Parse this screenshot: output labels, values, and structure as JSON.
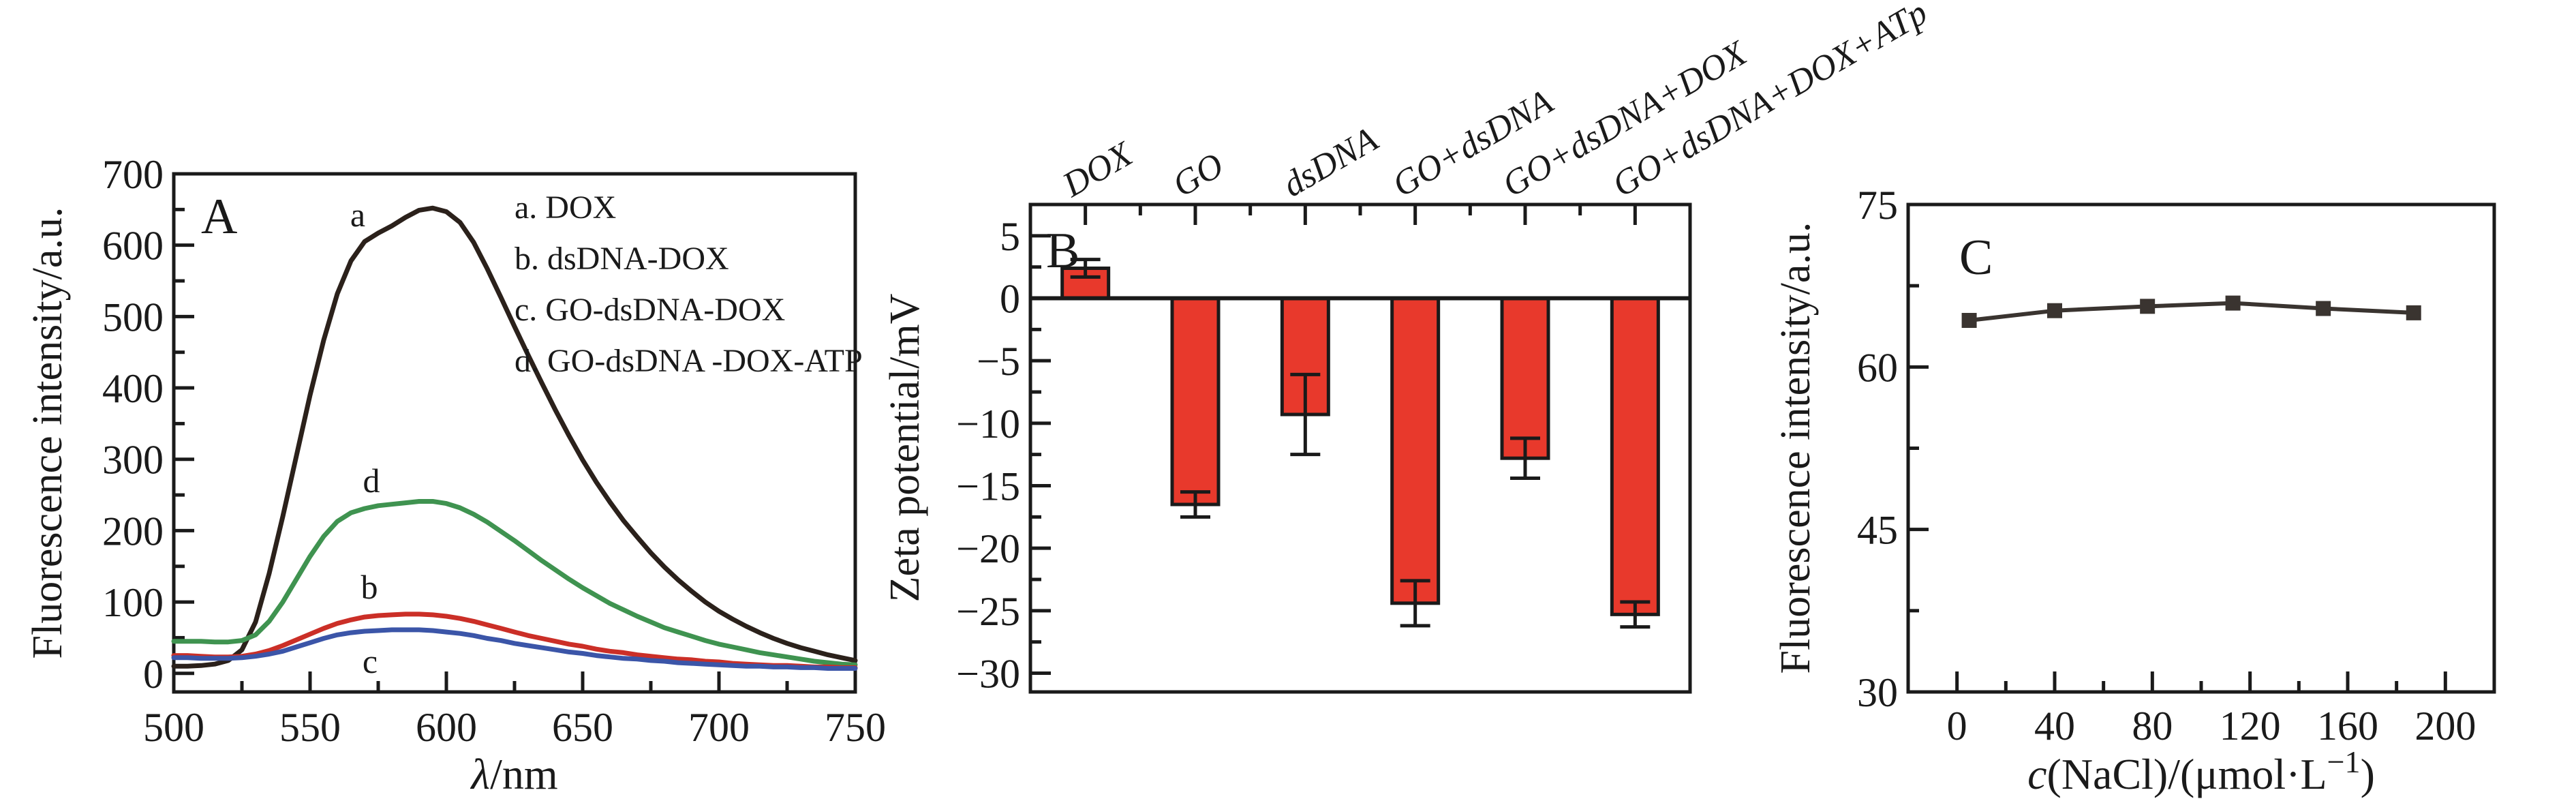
{
  "figure": {
    "description": "Three-panel scientific figure",
    "panel_letters": [
      "A",
      "B",
      "C"
    ],
    "colors": {
      "ink": "#1a1a1a",
      "background": "#ffffff"
    }
  },
  "chart_data": [
    {
      "id": "A",
      "type": "line",
      "panel_label": "A",
      "xlabel": "λ/nm",
      "xlabel_parts": {
        "italic": "λ",
        "rest": "/nm"
      },
      "ylabel": "Fluorescence intensity/a.u.",
      "xlim": [
        500,
        750
      ],
      "ylim": [
        -26,
        700
      ],
      "x_major_ticks": [
        500,
        550,
        600,
        650,
        700,
        750
      ],
      "x_minor_ticks": [
        525,
        575,
        625,
        675,
        725
      ],
      "y_major_ticks": [
        0,
        100,
        200,
        300,
        400,
        500,
        600,
        700
      ],
      "y_minor_ticks": [
        50,
        150,
        250,
        350,
        450,
        550,
        650
      ],
      "legend": [
        "a. DOX",
        "b. dsDNA-DOX",
        "c. GO-dsDNA-DOX",
        "d. GO-dsDNA -DOX-ATP"
      ],
      "x_start": 500,
      "x_step": 5,
      "series": [
        {
          "name": "a",
          "label": "a",
          "color": "#2b211b",
          "y": [
            10,
            10,
            11,
            13,
            18,
            33,
            72,
            140,
            220,
            305,
            390,
            467,
            532,
            578,
            605,
            617,
            627,
            639,
            649,
            652,
            647,
            632,
            604,
            567,
            527,
            486,
            446,
            407,
            369,
            333,
            299,
            268,
            240,
            214,
            191,
            169,
            149,
            131,
            115,
            100,
            87,
            76,
            66,
            57,
            49,
            42,
            36,
            31,
            26,
            22,
            18
          ]
        },
        {
          "name": "d",
          "label": "d",
          "color": "#3f9350",
          "y": [
            45,
            45,
            45,
            44,
            44,
            46,
            54,
            73,
            100,
            132,
            164,
            192,
            213,
            225,
            231,
            235,
            237,
            239,
            241,
            241,
            238,
            232,
            223,
            212,
            199,
            186,
            172,
            158,
            145,
            132,
            120,
            109,
            98,
            89,
            80,
            72,
            64,
            58,
            52,
            46,
            41,
            37,
            33,
            29,
            26,
            23,
            20,
            17,
            15,
            13,
            12
          ]
        },
        {
          "name": "b",
          "label": "b",
          "color": "#cb2f27",
          "y": [
            25,
            25,
            24,
            23,
            23,
            24,
            27,
            32,
            39,
            47,
            55,
            63,
            70,
            75,
            79,
            81,
            82,
            83,
            83,
            82,
            80,
            77,
            73,
            68,
            63,
            58,
            53,
            49,
            45,
            41,
            38,
            34,
            31,
            29,
            26,
            24,
            22,
            20,
            19,
            17,
            16,
            14,
            13,
            12,
            11,
            11,
            10,
            9,
            9,
            8,
            8
          ]
        },
        {
          "name": "c",
          "label": "c",
          "color": "#3b55a8",
          "y": [
            22,
            22,
            21,
            21,
            21,
            22,
            24,
            27,
            31,
            37,
            43,
            49,
            54,
            57,
            59,
            60,
            61,
            61,
            61,
            60,
            58,
            56,
            53,
            49,
            46,
            42,
            39,
            36,
            33,
            30,
            28,
            25,
            23,
            21,
            20,
            18,
            17,
            15,
            14,
            13,
            12,
            11,
            10,
            10,
            9,
            9,
            8,
            8,
            7,
            7,
            7
          ]
        }
      ]
    },
    {
      "id": "B",
      "type": "bar",
      "panel_label": "B",
      "ylabel": "Zeta potential/mV",
      "categories": [
        "DOX",
        "GO",
        "dsDNA",
        "GO+dsDNA",
        "GO+dsDNA+DOX",
        "GO+dsDNA+DOX+ATp"
      ],
      "values": [
        2.4,
        -16.5,
        -9.3,
        -24.4,
        -12.8,
        -25.3
      ],
      "errors": [
        0.7,
        1.0,
        3.2,
        1.8,
        1.6,
        1.0
      ],
      "bar_color": "#e8392c",
      "ylim": [
        -31.5,
        7.5
      ],
      "y_major_ticks": [
        5,
        0,
        -5,
        -10,
        -15,
        -20,
        -25,
        -30
      ],
      "y_minor_ticks": [
        7.5,
        2.5,
        -2.5,
        -7.5,
        -12.5,
        -17.5,
        -22.5,
        -27.5
      ]
    },
    {
      "id": "C",
      "type": "line",
      "panel_label": "C",
      "xlabel": "c(NaCl)/(μmol·L⁻¹)",
      "xlabel_parts": {
        "italic": "c",
        "rest": "(NaCl)/(μmol·L",
        "sup": "−1",
        "close": ")"
      },
      "ylabel": "Fluorescence intensity/a.u.",
      "xlim": [
        -20,
        220
      ],
      "ylim": [
        30,
        75
      ],
      "x_major_ticks": [
        0,
        40,
        80,
        120,
        160,
        200
      ],
      "x_minor_ticks": [
        20,
        60,
        100,
        140,
        180
      ],
      "y_major_ticks": [
        30,
        45,
        60,
        75
      ],
      "y_minor_ticks": [
        37.5,
        52.5,
        67.5
      ],
      "x": [
        5,
        40,
        78,
        113,
        150,
        187
      ],
      "y": [
        64.3,
        65.2,
        65.6,
        65.9,
        65.4,
        65.0
      ],
      "color": "#3a3430",
      "marker": "square"
    }
  ]
}
